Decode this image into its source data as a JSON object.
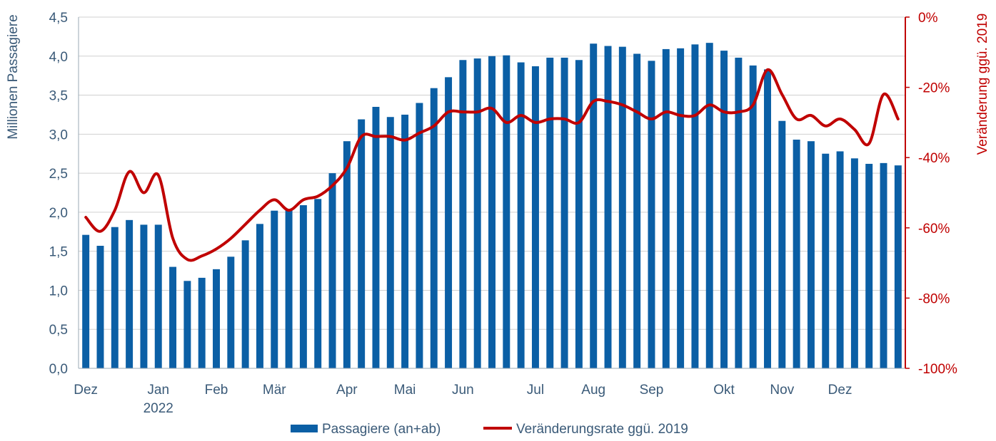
{
  "chart_data": {
    "type": "bar",
    "ylabel": "Millionen Passagiere",
    "y2label": "Veränderung ggü. 2019",
    "ylim": [
      0,
      4.5
    ],
    "y2lim": [
      -100,
      0
    ],
    "y_ticks": [
      "0,0",
      "0,5",
      "1,0",
      "1,5",
      "2,0",
      "2,5",
      "3,0",
      "3,5",
      "4,0",
      "4,5"
    ],
    "y2_ticks": [
      "-100%",
      "-80%",
      "-60%",
      "-40%",
      "-20%",
      "0%"
    ],
    "x_labels": [
      {
        "text": "Dez",
        "index": 0
      },
      {
        "text": "Jan",
        "index": 5
      },
      {
        "text": "Feb",
        "index": 9
      },
      {
        "text": "Mär",
        "index": 13
      },
      {
        "text": "Apr",
        "index": 18
      },
      {
        "text": "Mai",
        "index": 22
      },
      {
        "text": "Jun",
        "index": 26
      },
      {
        "text": "Jul",
        "index": 31
      },
      {
        "text": "Aug",
        "index": 35
      },
      {
        "text": "Sep",
        "index": 39
      },
      {
        "text": "Okt",
        "index": 44
      },
      {
        "text": "Nov",
        "index": 48
      },
      {
        "text": "Dez",
        "index": 52
      }
    ],
    "year_label": {
      "text": "2022",
      "index": 5
    },
    "grid": true,
    "legend_position": "bottom",
    "series": [
      {
        "name": "Passagiere (an+ab)",
        "type": "bar",
        "color": "#0b5fa5",
        "axis": "left",
        "values": [
          1.71,
          1.57,
          1.81,
          1.9,
          1.84,
          1.84,
          1.3,
          1.12,
          1.16,
          1.27,
          1.43,
          1.64,
          1.85,
          2.02,
          2.04,
          2.09,
          2.17,
          2.5,
          2.91,
          3.19,
          3.35,
          3.22,
          3.25,
          3.4,
          3.59,
          3.73,
          3.95,
          3.97,
          4.0,
          4.01,
          3.92,
          3.87,
          3.98,
          3.98,
          3.95,
          4.16,
          4.13,
          4.12,
          4.03,
          3.94,
          4.09,
          4.1,
          4.15,
          4.17,
          4.07,
          3.98,
          3.88,
          3.83,
          3.17,
          2.93,
          2.91,
          2.75,
          2.78,
          2.69,
          2.62,
          2.63,
          2.6
        ]
      },
      {
        "name": "Veränderungsrate ggü. 2019",
        "type": "line",
        "color": "#c00000",
        "axis": "right",
        "values": [
          -57,
          -61,
          -55,
          -44,
          -50,
          -45,
          -63,
          -69,
          -68,
          -66,
          -63,
          -59,
          -55,
          -52,
          -55,
          -52,
          -51,
          -48,
          -43,
          -34,
          -34,
          -34,
          -35,
          -33,
          -31,
          -27,
          -27,
          -27,
          -26,
          -30,
          -28,
          -30,
          -29,
          -29,
          -30,
          -24,
          -24,
          -25,
          -27,
          -29,
          -27,
          -28,
          -28,
          -25,
          -27,
          -27,
          -25,
          -15,
          -22,
          -29,
          -28,
          -31,
          -29,
          -32,
          -36,
          -22,
          -29
        ]
      }
    ]
  }
}
